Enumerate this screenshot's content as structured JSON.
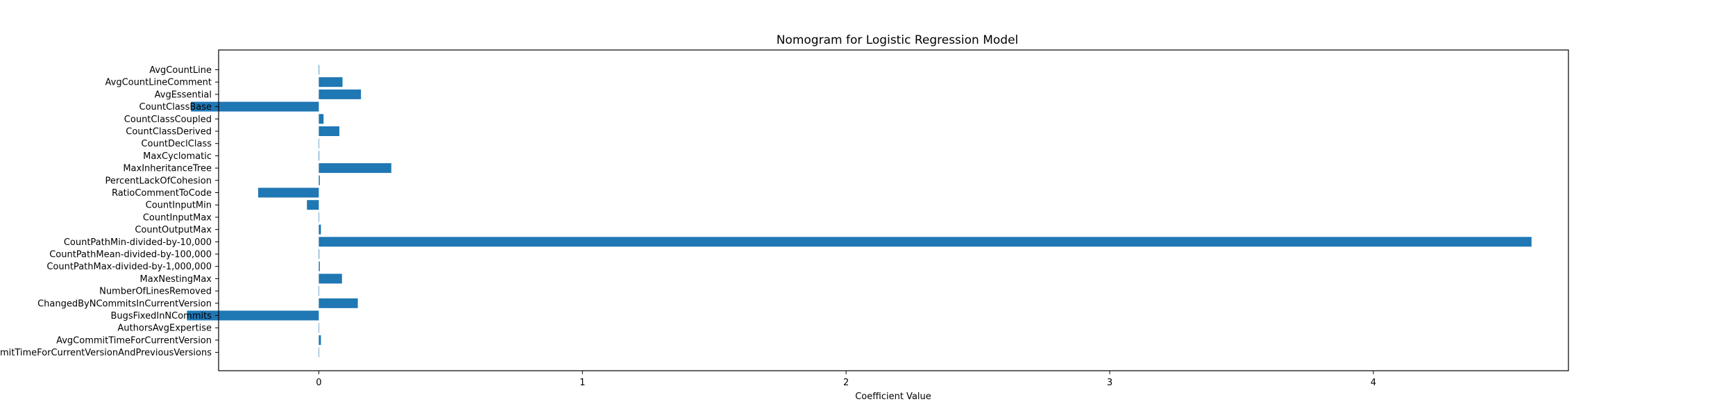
{
  "chart_data": {
    "type": "bar",
    "orientation": "horizontal",
    "title": "Nomogram for Logistic Regression Model",
    "xlabel": "Coefficient Value",
    "ylabel": "",
    "xlim": [
      -0.38,
      4.74
    ],
    "xticks": [
      0,
      1,
      2,
      3,
      4
    ],
    "grid": false,
    "legend": "none",
    "bar_color": "#1f77b4",
    "categories": [
      "AvgCountLine",
      "AvgCountLineComment",
      "AvgEssential",
      "CountClassBase",
      "CountClassCoupled",
      "CountClassDerived",
      "CountDeclClass",
      "MaxCyclomatic",
      "MaxInheritanceTree",
      "PercentLackOfCohesion",
      "RatioCommentToCode",
      "CountInputMin",
      "CountInputMax",
      "CountOutputMax",
      "CountPathMin-divided-by-10,000",
      "CountPathMean-divided-by-100,000",
      "CountPathMax-divided-by-1,000,000",
      "MaxNestingMax",
      "NumberOfLinesRemoved",
      "ChangedByNCommitsInCurrentVersion",
      "BugsFixedInNCommits",
      "AuthorsAvgExpertise",
      "AvgCommitTimeForCurrentVersion",
      "AvgCommitTimeForCurrentVersionAndPreviousVersions"
    ],
    "values": [
      0.002,
      0.09,
      0.16,
      -0.485,
      0.018,
      0.078,
      0,
      0.002,
      0.275,
      0.004,
      -0.23,
      -0.045,
      0,
      0.008,
      4.6,
      0.002,
      0.004,
      0.088,
      0,
      0.148,
      -0.5,
      0,
      0.008,
      0
    ]
  }
}
